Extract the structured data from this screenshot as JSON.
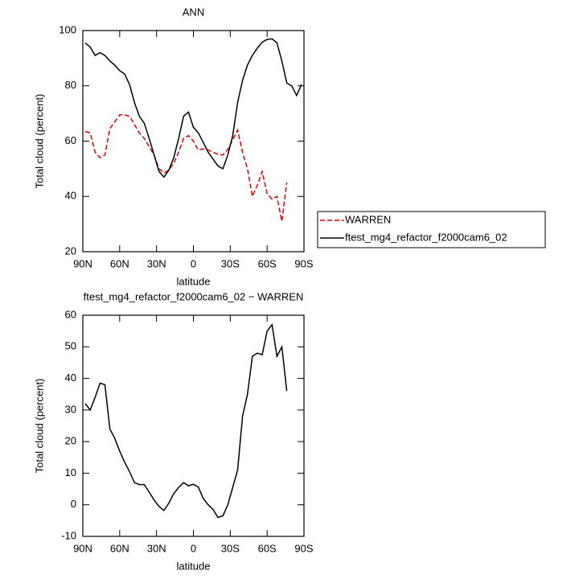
{
  "chart_data": [
    {
      "type": "line",
      "title": "ANN",
      "xlabel": "latitude",
      "ylabel": "Total cloud (percent)",
      "x": [
        88,
        84,
        80,
        76,
        72,
        68,
        64,
        60,
        56,
        52,
        48,
        44,
        40,
        36,
        32,
        28,
        24,
        20,
        16,
        12,
        8,
        4,
        0,
        -4,
        -8,
        -12,
        -16,
        -20,
        -24,
        -28,
        -32,
        -36,
        -40,
        -44,
        -48,
        -52,
        -56,
        -60,
        -64,
        -68,
        -72,
        -76,
        -80,
        -84,
        -88
      ],
      "series": [
        {
          "name": "WARREN",
          "color": "#e00000",
          "dash": true,
          "values": [
            63.5,
            63,
            56,
            54,
            55,
            64.5,
            67,
            69.5,
            69.5,
            69,
            66,
            63,
            61,
            58,
            55,
            50,
            48.5,
            49.5,
            52,
            56,
            61,
            62,
            60,
            56.8,
            57.2,
            56.8,
            56,
            55.2,
            55,
            57,
            60.5,
            64,
            56,
            50,
            40,
            44,
            49,
            41,
            39,
            40,
            31,
            45,
            null,
            null,
            null
          ]
        },
        {
          "name": "ftest_mg4_refactor_f2000cam6_02",
          "color": "#000000",
          "dash": false,
          "values": [
            95.5,
            94,
            91,
            92,
            91,
            89,
            87.5,
            85.5,
            84.3,
            80.5,
            74,
            69,
            66.5,
            61,
            55,
            49,
            47,
            49.5,
            54,
            61,
            69,
            70.5,
            65,
            63,
            59.5,
            56,
            53.5,
            51,
            50,
            55,
            62,
            74,
            82,
            87.5,
            91,
            93.6,
            95.8,
            96.8,
            97,
            95.5,
            89,
            81,
            80,
            76.5,
            80.5
          ]
        }
      ],
      "xlim": [
        90,
        -90
      ],
      "ylim": [
        20,
        100
      ],
      "xticks": [
        {
          "value": 90,
          "label": "90N"
        },
        {
          "value": 60,
          "label": "60N"
        },
        {
          "value": 30,
          "label": "30N"
        },
        0,
        {
          "value": -30,
          "label": "30S"
        },
        {
          "value": -60,
          "label": "60S"
        },
        {
          "value": -90,
          "label": "90S"
        }
      ],
      "yticks": [
        20,
        40,
        60,
        80,
        100
      ],
      "legend": "outside-right"
    },
    {
      "type": "line",
      "title": "ftest_mg4_refactor_f2000cam6_02 − WARREN",
      "xlabel": "latitude",
      "ylabel": "Total cloud (percent)",
      "x": [
        88,
        84,
        80,
        76,
        72,
        68,
        64,
        60,
        56,
        52,
        48,
        44,
        40,
        36,
        32,
        28,
        24,
        20,
        16,
        12,
        8,
        4,
        0,
        -4,
        -8,
        -12,
        -16,
        -20,
        -24,
        -28,
        -32,
        -36,
        -40,
        -44,
        -48,
        -52,
        -56,
        -60,
        -64,
        -68,
        -72,
        -76,
        -80,
        -84,
        -88
      ],
      "series": [
        {
          "color": "#000000",
          "dash": false,
          "values": [
            32,
            30,
            34,
            38.5,
            38,
            24,
            21,
            17,
            13.5,
            10.5,
            7,
            6.4,
            6.4,
            4,
            1.5,
            -0.5,
            -1.8,
            0.5,
            3.5,
            5.5,
            7,
            6,
            6.5,
            5.6,
            2,
            0,
            -1.5,
            -4,
            -3.5,
            0,
            5.5,
            11,
            28,
            35,
            47,
            48,
            47.5,
            55,
            57,
            47,
            50,
            36,
            null,
            null,
            null
          ]
        }
      ],
      "xlim": [
        90,
        -90
      ],
      "ylim": [
        -10,
        60
      ],
      "xticks": [
        {
          "value": 90,
          "label": "90N"
        },
        {
          "value": 60,
          "label": "60N"
        },
        {
          "value": 30,
          "label": "30N"
        },
        0,
        {
          "value": -30,
          "label": "30S"
        },
        {
          "value": -60,
          "label": "60S"
        },
        {
          "value": -90,
          "label": "90S"
        }
      ],
      "yticks": [
        -10,
        0,
        10,
        20,
        30,
        40,
        50,
        60
      ]
    }
  ]
}
